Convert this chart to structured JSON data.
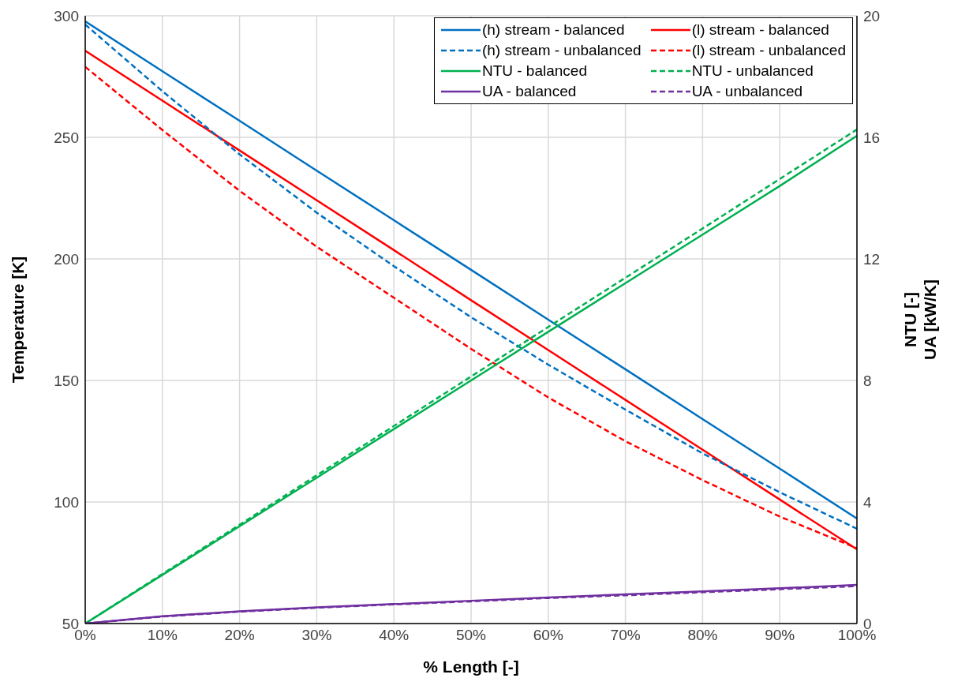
{
  "chart_data": {
    "type": "line",
    "xlabel": "% Length [-]",
    "ylabel": "Temperature [K]",
    "y2label": "NTU [-]\nUA [kW/K]",
    "x": [
      0,
      10,
      20,
      30,
      40,
      50,
      60,
      70,
      80,
      90,
      100
    ],
    "xlim": [
      0,
      100
    ],
    "xticks": [
      {
        "value": 0,
        "label": "0%"
      },
      {
        "value": 10,
        "label": "10%"
      },
      {
        "value": 20,
        "label": "20%"
      },
      {
        "value": 30,
        "label": "30%"
      },
      {
        "value": 40,
        "label": "40%"
      },
      {
        "value": 50,
        "label": "50%"
      },
      {
        "value": 60,
        "label": "60%"
      },
      {
        "value": 70,
        "label": "70%"
      },
      {
        "value": 80,
        "label": "80%"
      },
      {
        "value": 90,
        "label": "90%"
      },
      {
        "value": 100,
        "label": "100%"
      }
    ],
    "ylim": [
      50,
      300
    ],
    "yticks": [
      50,
      100,
      150,
      200,
      250,
      300
    ],
    "y2lim": [
      0,
      20
    ],
    "y2ticks": [
      0,
      4,
      8,
      12,
      16,
      20
    ],
    "grid": true,
    "legend": "top right",
    "marker": "none",
    "series": [
      {
        "name": "(h) stream - balanced",
        "color": "#0070c0",
        "line_style": "solid",
        "values": [
          297.7,
          277.2,
          256.8,
          236.3,
          215.9,
          195.5,
          175.0,
          154.6,
          134.1,
          113.7,
          93.2
        ]
      },
      {
        "name": "(l) stream - balanced",
        "color": "#ff0000",
        "line_style": "solid",
        "values": [
          285.6,
          265.1,
          244.6,
          224.1,
          203.6,
          183.0,
          162.5,
          142.0,
          121.5,
          101.0,
          80.5
        ]
      },
      {
        "name": "(h) stream - unbalanced",
        "color": "#0070c0",
        "line_style": "dashed",
        "values": [
          296.4,
          269,
          243,
          219,
          197,
          176,
          156.5,
          138,
          120,
          104,
          89
        ]
      },
      {
        "name": "(l) stream - unbalanced",
        "color": "#ff0000",
        "line_style": "dashed",
        "values": [
          279,
          253,
          228,
          205,
          184,
          163,
          143,
          125,
          109,
          94,
          81
        ]
      },
      {
        "name": "NTU - balanced",
        "color": "#00b050",
        "line_style": "solid",
        "axis": "y2",
        "values": [
          0,
          1.6,
          3.2,
          4.8,
          6.4,
          8.0,
          9.6,
          11.2,
          12.8,
          14.4,
          16.05
        ]
      },
      {
        "name": "NTU - unbalanced",
        "color": "#00b050",
        "line_style": "dashed",
        "axis": "y2",
        "values": [
          0,
          1.63,
          3.25,
          4.88,
          6.5,
          8.13,
          9.76,
          11.38,
          13.0,
          14.63,
          16.26
        ]
      },
      {
        "name": "UA - balanced",
        "color": "#7030a0",
        "line_style": "solid",
        "axis": "y2",
        "values": [
          0,
          0.24,
          0.4,
          0.53,
          0.64,
          0.75,
          0.86,
          0.96,
          1.06,
          1.16,
          1.27
        ]
      },
      {
        "name": "UA - unbalanced",
        "color": "#7030a0",
        "line_style": "dashed",
        "axis": "y2",
        "values": [
          0,
          0.23,
          0.39,
          0.52,
          0.63,
          0.73,
          0.84,
          0.93,
          1.03,
          1.13,
          1.23
        ]
      }
    ]
  }
}
